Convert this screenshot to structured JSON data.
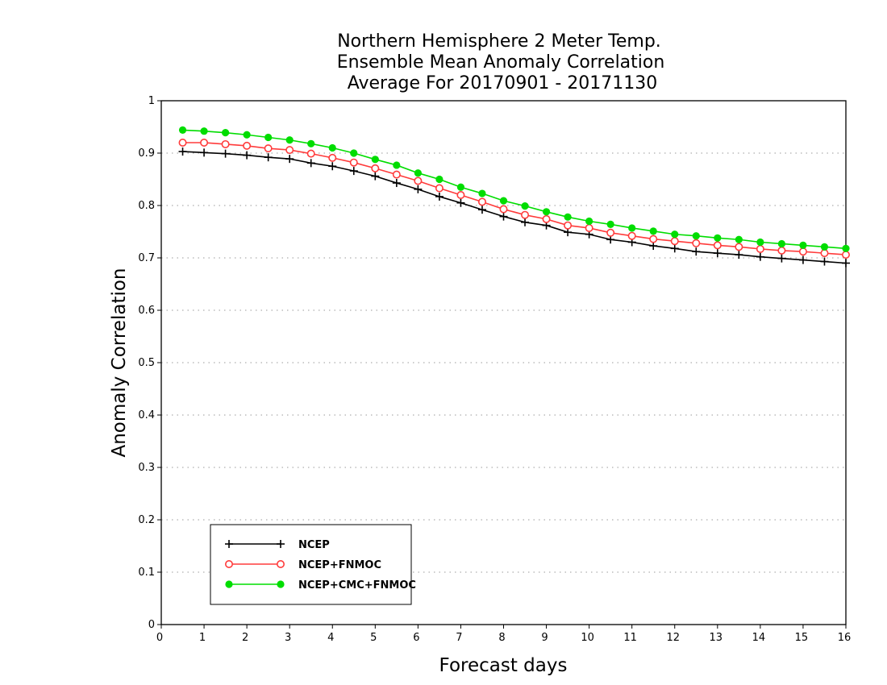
{
  "chart_data": {
    "type": "line",
    "title": [
      "Northern Hemisphere 2 Meter Temp.",
      "Ensemble Mean Anomaly Correlation",
      "Average For 20170901 - 20171130"
    ],
    "xlabel": "Forecast days",
    "ylabel": "Anomaly Correlation",
    "xlim": [
      0,
      16
    ],
    "ylim": [
      0,
      1
    ],
    "xticks": [
      0,
      1,
      2,
      3,
      4,
      5,
      6,
      7,
      8,
      9,
      10,
      11,
      12,
      13,
      14,
      15,
      16
    ],
    "yticks": [
      0,
      0.1,
      0.2,
      0.3,
      0.4,
      0.5,
      0.6,
      0.7,
      0.8,
      0.9,
      1
    ],
    "ytick_labels": [
      "0",
      "0.1",
      "0.2",
      "0.3",
      "0.4",
      "0.5",
      "0.6",
      "0.7",
      "0.8",
      "0.9",
      "1"
    ],
    "grid": "horizontal-dotted",
    "legend_position": "bottom-left",
    "x": [
      0.5,
      1,
      1.5,
      2,
      2.5,
      3,
      3.5,
      4,
      4.5,
      5,
      5.5,
      6,
      6.5,
      7,
      7.5,
      8,
      8.5,
      9,
      9.5,
      10,
      10.5,
      11,
      11.5,
      12,
      12.5,
      13,
      13.5,
      14,
      14.5,
      15,
      15.5,
      16
    ],
    "series": [
      {
        "name": "NCEP",
        "color": "#000000",
        "marker": "plus",
        "values": [
          0.903,
          0.901,
          0.899,
          0.896,
          0.892,
          0.889,
          0.881,
          0.875,
          0.866,
          0.856,
          0.843,
          0.831,
          0.817,
          0.805,
          0.792,
          0.779,
          0.768,
          0.762,
          0.749,
          0.745,
          0.735,
          0.73,
          0.723,
          0.718,
          0.712,
          0.709,
          0.706,
          0.702,
          0.699,
          0.696,
          0.693,
          0.69
        ]
      },
      {
        "name": "NCEP+FNMOC",
        "color": "#ff3b3b",
        "marker": "open-circle",
        "values": [
          0.92,
          0.92,
          0.917,
          0.914,
          0.909,
          0.906,
          0.899,
          0.891,
          0.882,
          0.871,
          0.859,
          0.847,
          0.833,
          0.82,
          0.807,
          0.793,
          0.782,
          0.774,
          0.762,
          0.757,
          0.748,
          0.742,
          0.736,
          0.732,
          0.728,
          0.724,
          0.721,
          0.717,
          0.714,
          0.712,
          0.709,
          0.706
        ]
      },
      {
        "name": "NCEP+CMC+FNMOC",
        "color": "#00dd00",
        "marker": "filled-circle",
        "values": [
          0.944,
          0.942,
          0.939,
          0.935,
          0.93,
          0.925,
          0.918,
          0.91,
          0.9,
          0.888,
          0.877,
          0.862,
          0.85,
          0.835,
          0.823,
          0.809,
          0.799,
          0.788,
          0.778,
          0.77,
          0.764,
          0.757,
          0.751,
          0.745,
          0.742,
          0.738,
          0.735,
          0.73,
          0.727,
          0.724,
          0.721,
          0.718
        ]
      }
    ]
  }
}
